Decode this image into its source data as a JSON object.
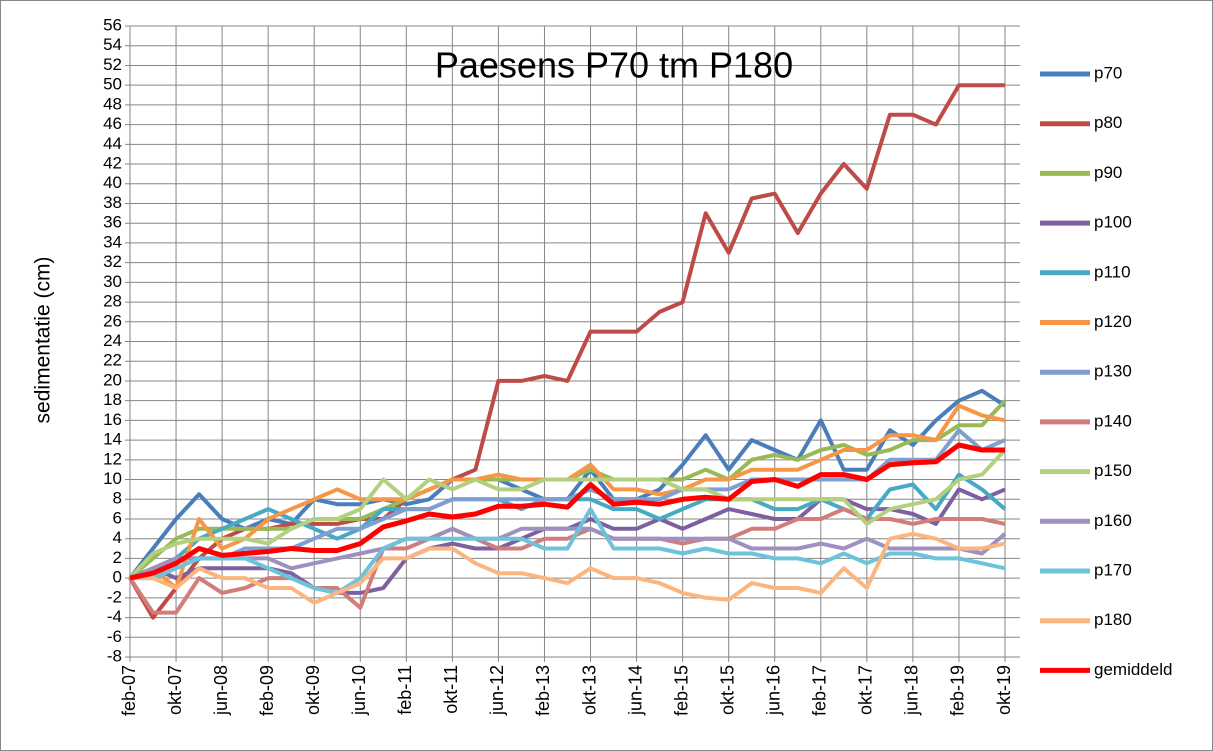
{
  "chart_data": {
    "type": "line",
    "title": "Paesens P70 tm P180",
    "y_label": "sedimentatie (cm)",
    "categories": [
      "feb-07",
      null,
      "okt-07",
      null,
      "jun-08",
      null,
      "feb-09",
      null,
      "okt-09",
      null,
      "jun-10",
      null,
      "feb-11",
      null,
      "okt-11",
      null,
      "jun-12",
      null,
      "feb-13",
      null,
      "okt-13",
      null,
      "jun-14",
      null,
      "feb-15",
      null,
      "okt-15",
      null,
      "jun-16",
      null,
      "feb-17",
      null,
      "okt-17",
      null,
      "jun-18",
      null,
      "feb-19",
      null,
      "okt-19"
    ],
    "ylim": [
      -8,
      56
    ],
    "yticks": [
      -8,
      -6,
      -4,
      -2,
      0,
      2,
      4,
      6,
      8,
      10,
      12,
      14,
      16,
      18,
      20,
      22,
      24,
      26,
      28,
      30,
      32,
      34,
      36,
      38,
      40,
      42,
      44,
      46,
      48,
      50,
      52,
      54,
      56
    ],
    "grid": true,
    "legend": "right",
    "series": [
      {
        "name": "p70",
        "color": "#4a7ebb",
        "values": [
          0,
          3,
          6,
          8.5,
          6,
          5,
          6,
          5.5,
          8,
          7.5,
          7.5,
          8,
          7.5,
          8,
          10,
          10,
          10,
          9,
          8,
          8,
          11,
          8,
          8,
          9,
          11.5,
          14.5,
          11,
          14,
          13,
          12,
          16,
          11,
          11,
          15,
          13.5,
          16,
          18,
          19,
          17.5
        ]
      },
      {
        "name": "p80",
        "color": "#be4b48",
        "values": [
          0,
          -4,
          -1,
          2,
          4,
          5,
          5,
          5.5,
          5.5,
          5.5,
          6,
          6,
          8,
          9,
          10,
          11,
          20,
          20,
          20.5,
          20,
          25,
          25,
          25,
          27,
          28,
          37,
          33,
          38.5,
          39,
          35,
          39,
          42,
          39.5,
          47,
          47,
          46,
          50,
          50,
          50
        ]
      },
      {
        "name": "p90",
        "color": "#98b954",
        "values": [
          0,
          2,
          4,
          5,
          5,
          5,
          5,
          5,
          6,
          6,
          6,
          7,
          8,
          9,
          10,
          10,
          10,
          10,
          10,
          10,
          11,
          10,
          10,
          10,
          10,
          11,
          10,
          12,
          12.5,
          12,
          13,
          13.5,
          12.5,
          13,
          14,
          14,
          15.5,
          15.5,
          18
        ]
      },
      {
        "name": "p100",
        "color": "#7d60a0",
        "values": [
          0,
          1,
          0,
          1,
          1,
          1,
          1,
          0.5,
          -1,
          -1.5,
          -1.5,
          -1,
          2,
          3,
          3.5,
          3,
          3,
          4,
          5,
          5,
          6,
          5,
          5,
          6,
          5,
          6,
          7,
          6.5,
          6,
          6,
          8,
          8,
          7,
          7,
          6.5,
          5.5,
          9,
          8,
          9
        ]
      },
      {
        "name": "p110",
        "color": "#46aac5",
        "values": [
          0,
          1,
          2,
          4,
          5,
          6,
          7,
          6,
          5,
          4,
          5,
          7,
          7,
          7,
          8,
          8,
          8,
          7,
          8,
          8,
          8,
          7,
          7,
          6,
          7,
          8,
          8,
          8,
          7,
          7,
          8,
          7,
          6,
          9,
          9.5,
          7,
          10.5,
          9,
          7
        ]
      },
      {
        "name": "p120",
        "color": "#f79646",
        "values": [
          0,
          1,
          -1,
          6,
          3,
          4,
          6,
          7,
          8,
          9,
          8,
          8,
          8,
          9,
          10,
          10,
          10.5,
          10,
          10,
          10,
          11.5,
          9,
          9,
          8.5,
          9,
          10,
          10,
          11,
          11,
          11,
          12,
          13,
          13,
          14.5,
          14.5,
          14,
          17.5,
          16.5,
          16
        ]
      },
      {
        "name": "p130",
        "color": "#7f9fd0",
        "values": [
          0,
          1,
          2,
          2,
          2,
          3,
          3,
          3,
          4,
          5,
          5,
          6,
          7,
          7,
          8,
          8,
          8,
          8,
          8,
          8,
          9,
          8,
          8,
          8,
          9,
          9,
          9,
          10,
          10,
          10,
          10,
          10,
          10,
          12,
          12,
          12,
          15,
          13,
          14
        ]
      },
      {
        "name": "p140",
        "color": "#d17d7b",
        "values": [
          0,
          -3.5,
          -3.5,
          0,
          -1.5,
          -1,
          0,
          0,
          -1,
          -1,
          -3,
          3,
          3,
          4,
          5,
          4,
          3,
          3,
          4,
          4,
          5,
          4,
          4,
          4,
          3.5,
          4,
          4,
          5,
          5,
          6,
          6,
          7,
          6,
          6,
          5.5,
          6,
          6,
          6,
          5.5
        ]
      },
      {
        "name": "p150",
        "color": "#b3d07f",
        "values": [
          0,
          2.5,
          3.5,
          4,
          4,
          4,
          3.5,
          5,
          6,
          6,
          7,
          10,
          8,
          10,
          9,
          10,
          9,
          9,
          10,
          10,
          10,
          10,
          10,
          10,
          9,
          9,
          8,
          8,
          8,
          8,
          8,
          8,
          5.5,
          7,
          7.5,
          8,
          10,
          10.5,
          13
        ]
      },
      {
        "name": "p160",
        "color": "#a090c0",
        "values": [
          0,
          1,
          2,
          2,
          2,
          2,
          2,
          1,
          1.5,
          2,
          2.5,
          3,
          4,
          4,
          5,
          4,
          4,
          5,
          5,
          5,
          5,
          4,
          4,
          4,
          4,
          4,
          4,
          3,
          3,
          3,
          3.5,
          3,
          4,
          3,
          3,
          3,
          3,
          2.5,
          4.5
        ]
      },
      {
        "name": "p170",
        "color": "#6dc3d9",
        "values": [
          0,
          0,
          1,
          2,
          2,
          2,
          1,
          0,
          -1,
          -1.5,
          0,
          3,
          4,
          4,
          4,
          4,
          4,
          4,
          3,
          3,
          7,
          3,
          3,
          3,
          2.5,
          3,
          2.5,
          2.5,
          2,
          2,
          1.5,
          2.5,
          1.5,
          2.5,
          2.5,
          2,
          2,
          1.5,
          1
        ]
      },
      {
        "name": "p180",
        "color": "#fbb57f",
        "values": [
          0,
          0,
          -1,
          1,
          0,
          0,
          -1,
          -1,
          -2.5,
          -1.5,
          -0.5,
          2,
          2,
          3,
          3,
          1.5,
          0.5,
          0.5,
          0,
          -0.5,
          1,
          0,
          0,
          -0.5,
          -1.5,
          -2,
          -2.2,
          -0.5,
          -1,
          -1,
          -1.5,
          1,
          -1,
          4,
          4.5,
          4,
          3,
          3,
          3.5
        ]
      },
      {
        "name": "gemiddeld",
        "color": "#ff0000",
        "values": [
          0,
          0.5,
          1.5,
          3,
          2.3,
          2.5,
          2.7,
          3,
          2.8,
          2.8,
          3.5,
          5.2,
          5.8,
          6.5,
          6.2,
          6.5,
          7.3,
          7.3,
          7.5,
          7.2,
          9.5,
          7.5,
          7.7,
          7.5,
          8,
          8.2,
          8,
          9.8,
          10,
          9.3,
          10.5,
          10.5,
          10,
          11.5,
          11.7,
          11.8,
          13.5,
          13,
          13
        ]
      }
    ]
  }
}
